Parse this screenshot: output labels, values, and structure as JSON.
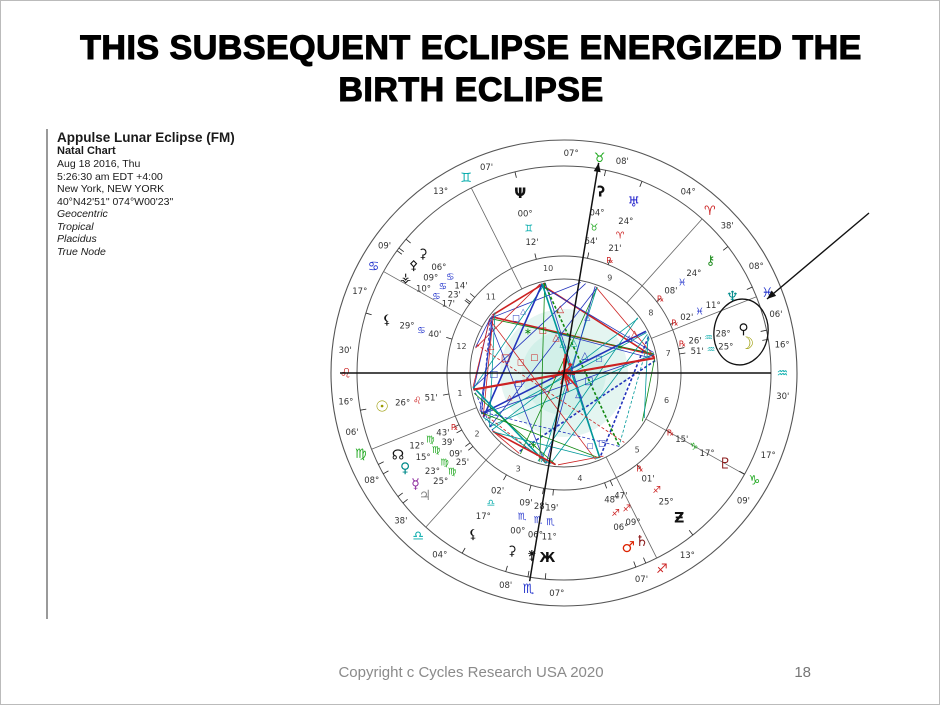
{
  "slide": {
    "title_line1": "THIS SUBSEQUENT ECLIPSE ENERGIZED THE",
    "title_line2": "BIRTH ECLIPSE",
    "footer": "Copyright c Cycles Research USA 2020",
    "page_number": "18"
  },
  "chart_info": {
    "title": "Appulse Lunar Eclipse (FM)",
    "subtitle": "Natal Chart",
    "lines": [
      "Aug 18 2016, Thu",
      "5:26:30 am EDT +4:00",
      "New York, NEW YORK",
      "40°N42'51\" 074°W00'23\""
    ],
    "italic_lines": [
      "Geocentric",
      "Tropical",
      "Placidus",
      "True Node"
    ]
  },
  "wheel": {
    "element_colors": {
      "fire": "#cc2222",
      "earth": "#1fa81f",
      "air": "#00aaaa",
      "water": "#2233cc"
    },
    "aspect_palette": [
      "#cc2222",
      "#2233bb",
      "#009999",
      "#118811"
    ],
    "retro_color": "#cc2222",
    "cusps": [
      {
        "house": 1,
        "deg": 16,
        "min": 30,
        "sign": "Leo"
      },
      {
        "house": 2,
        "deg": 8,
        "min": 6,
        "sign": "Virgo"
      },
      {
        "house": 3,
        "deg": 4,
        "min": 38,
        "sign": "Libra"
      },
      {
        "house": 4,
        "deg": 7,
        "min": 8,
        "sign": "Scorpio"
      },
      {
        "house": 5,
        "deg": 13,
        "min": 7,
        "sign": "Sagittarius"
      },
      {
        "house": 6,
        "deg": 17,
        "min": 9,
        "sign": "Capricorn"
      },
      {
        "house": 7,
        "deg": 16,
        "min": 30,
        "sign": "Aquarius"
      },
      {
        "house": 8,
        "deg": 8,
        "min": 6,
        "sign": "Pisces"
      },
      {
        "house": 9,
        "deg": 4,
        "min": 38,
        "sign": "Aries"
      },
      {
        "house": 10,
        "deg": 7,
        "min": 8,
        "sign": "Taurus"
      },
      {
        "house": 11,
        "deg": 13,
        "min": 7,
        "sign": "Gemini"
      },
      {
        "house": 12,
        "deg": 17,
        "min": 9,
        "sign": "Cancer"
      }
    ],
    "bodies": [
      {
        "name": "moon",
        "glyph": "☽",
        "color": "#9a9a00",
        "deg": 25,
        "min": 51,
        "sign": "Aquarius",
        "retro": false,
        "size": 17
      },
      {
        "name": "asteroid-a",
        "glyph": "⚲",
        "color": "#111111",
        "deg": 28,
        "min": 26,
        "sign": "Aquarius",
        "retro": true,
        "size": 14
      },
      {
        "name": "neptune",
        "glyph": "♆",
        "color": "#008b8b",
        "deg": 11,
        "min": 2,
        "sign": "Pisces",
        "retro": true,
        "size": 14
      },
      {
        "name": "chiron",
        "glyph": "⚷",
        "color": "#1a8a1a",
        "deg": 24,
        "min": 8,
        "sign": "Pisces",
        "retro": true,
        "size": 13
      },
      {
        "name": "uranus",
        "glyph": "♅",
        "color": "#2222cc",
        "deg": 24,
        "min": 21,
        "sign": "Aries",
        "retro": true,
        "size": 14
      },
      {
        "name": "asteroid-b",
        "glyph": "ʔ",
        "color": "#111111",
        "deg": 4,
        "min": 54,
        "sign": "Taurus",
        "retro": false,
        "size": 14
      },
      {
        "name": "asteroid-c",
        "glyph": "Ψ",
        "color": "#111111",
        "deg": 0,
        "min": 12,
        "sign": "Gemini",
        "retro": false,
        "size": 14
      },
      {
        "name": "asteroid-d",
        "glyph": "⚳",
        "color": "#111111",
        "deg": 6,
        "min": 14,
        "sign": "Cancer",
        "retro": false,
        "size": 13
      },
      {
        "name": "asteroid-e",
        "glyph": "⚴",
        "color": "#111111",
        "deg": 9,
        "min": 23,
        "sign": "Cancer",
        "retro": false,
        "size": 13
      },
      {
        "name": "asteroid-f",
        "glyph": "⚶",
        "color": "#111111",
        "deg": 10,
        "min": 17,
        "sign": "Cancer",
        "retro": false,
        "size": 13
      },
      {
        "name": "asteroid-g",
        "glyph": "⚸",
        "color": "#111111",
        "deg": 29,
        "min": 40,
        "sign": "Cancer",
        "retro": false,
        "size": 13
      },
      {
        "name": "sun",
        "glyph": "☉",
        "color": "#9a9a00",
        "deg": 26,
        "min": 51,
        "sign": "Leo",
        "retro": false,
        "size": 15
      },
      {
        "name": "north-node",
        "glyph": "☊",
        "color": "#111111",
        "deg": 12,
        "min": 43,
        "sign": "Virgo",
        "retro": true,
        "size": 14
      },
      {
        "name": "venus",
        "glyph": "♀",
        "color": "#008b8b",
        "deg": 15,
        "min": 39,
        "sign": "Virgo",
        "retro": false,
        "size": 14
      },
      {
        "name": "mercury",
        "glyph": "☿",
        "color": "#882299",
        "deg": 23,
        "min": 9,
        "sign": "Virgo",
        "retro": false,
        "size": 14
      },
      {
        "name": "jupiter",
        "glyph": "♃",
        "color": "#8a8a8a",
        "deg": 25,
        "min": 25,
        "sign": "Virgo",
        "retro": false,
        "size": 14
      },
      {
        "name": "asteroid-h",
        "glyph": "⚸",
        "color": "#111111",
        "deg": 17,
        "min": 2,
        "sign": "Libra",
        "retro": false,
        "size": 13
      },
      {
        "name": "asteroid-i",
        "glyph": "⚳",
        "color": "#111111",
        "deg": 0,
        "min": 9,
        "sign": "Scorpio",
        "retro": false,
        "size": 13
      },
      {
        "name": "asteroid-j",
        "glyph": "⚵",
        "color": "#111111",
        "deg": 6,
        "min": 28,
        "sign": "Scorpio",
        "retro": false,
        "size": 13
      },
      {
        "name": "asteroid-k",
        "glyph": "Ж",
        "color": "#111111",
        "deg": 11,
        "min": 19,
        "sign": "Scorpio",
        "retro": false,
        "size": 13
      },
      {
        "name": "mars",
        "glyph": "♂",
        "color": "#dd2200",
        "deg": 6,
        "min": 48,
        "sign": "Sagittarius",
        "retro": false,
        "size": 15
      },
      {
        "name": "saturn",
        "glyph": "♄",
        "color": "#8b1a1a",
        "deg": 9,
        "min": 47,
        "sign": "Sagittarius",
        "retro": false,
        "size": 15
      },
      {
        "name": "asteroid-l",
        "glyph": "Ƶ",
        "color": "#111111",
        "deg": 25,
        "min": 1,
        "sign": "Sagittarius",
        "retro": true,
        "size": 14
      },
      {
        "name": "pluto",
        "glyph": "♇",
        "color": "#8b1a1a",
        "deg": 17,
        "min": 15,
        "sign": "Capricorn",
        "retro": true,
        "size": 15
      }
    ],
    "annotation": {
      "highlight": "ellipse around Moon and asteroid in Aquarius",
      "pointer_arrow": true
    }
  }
}
